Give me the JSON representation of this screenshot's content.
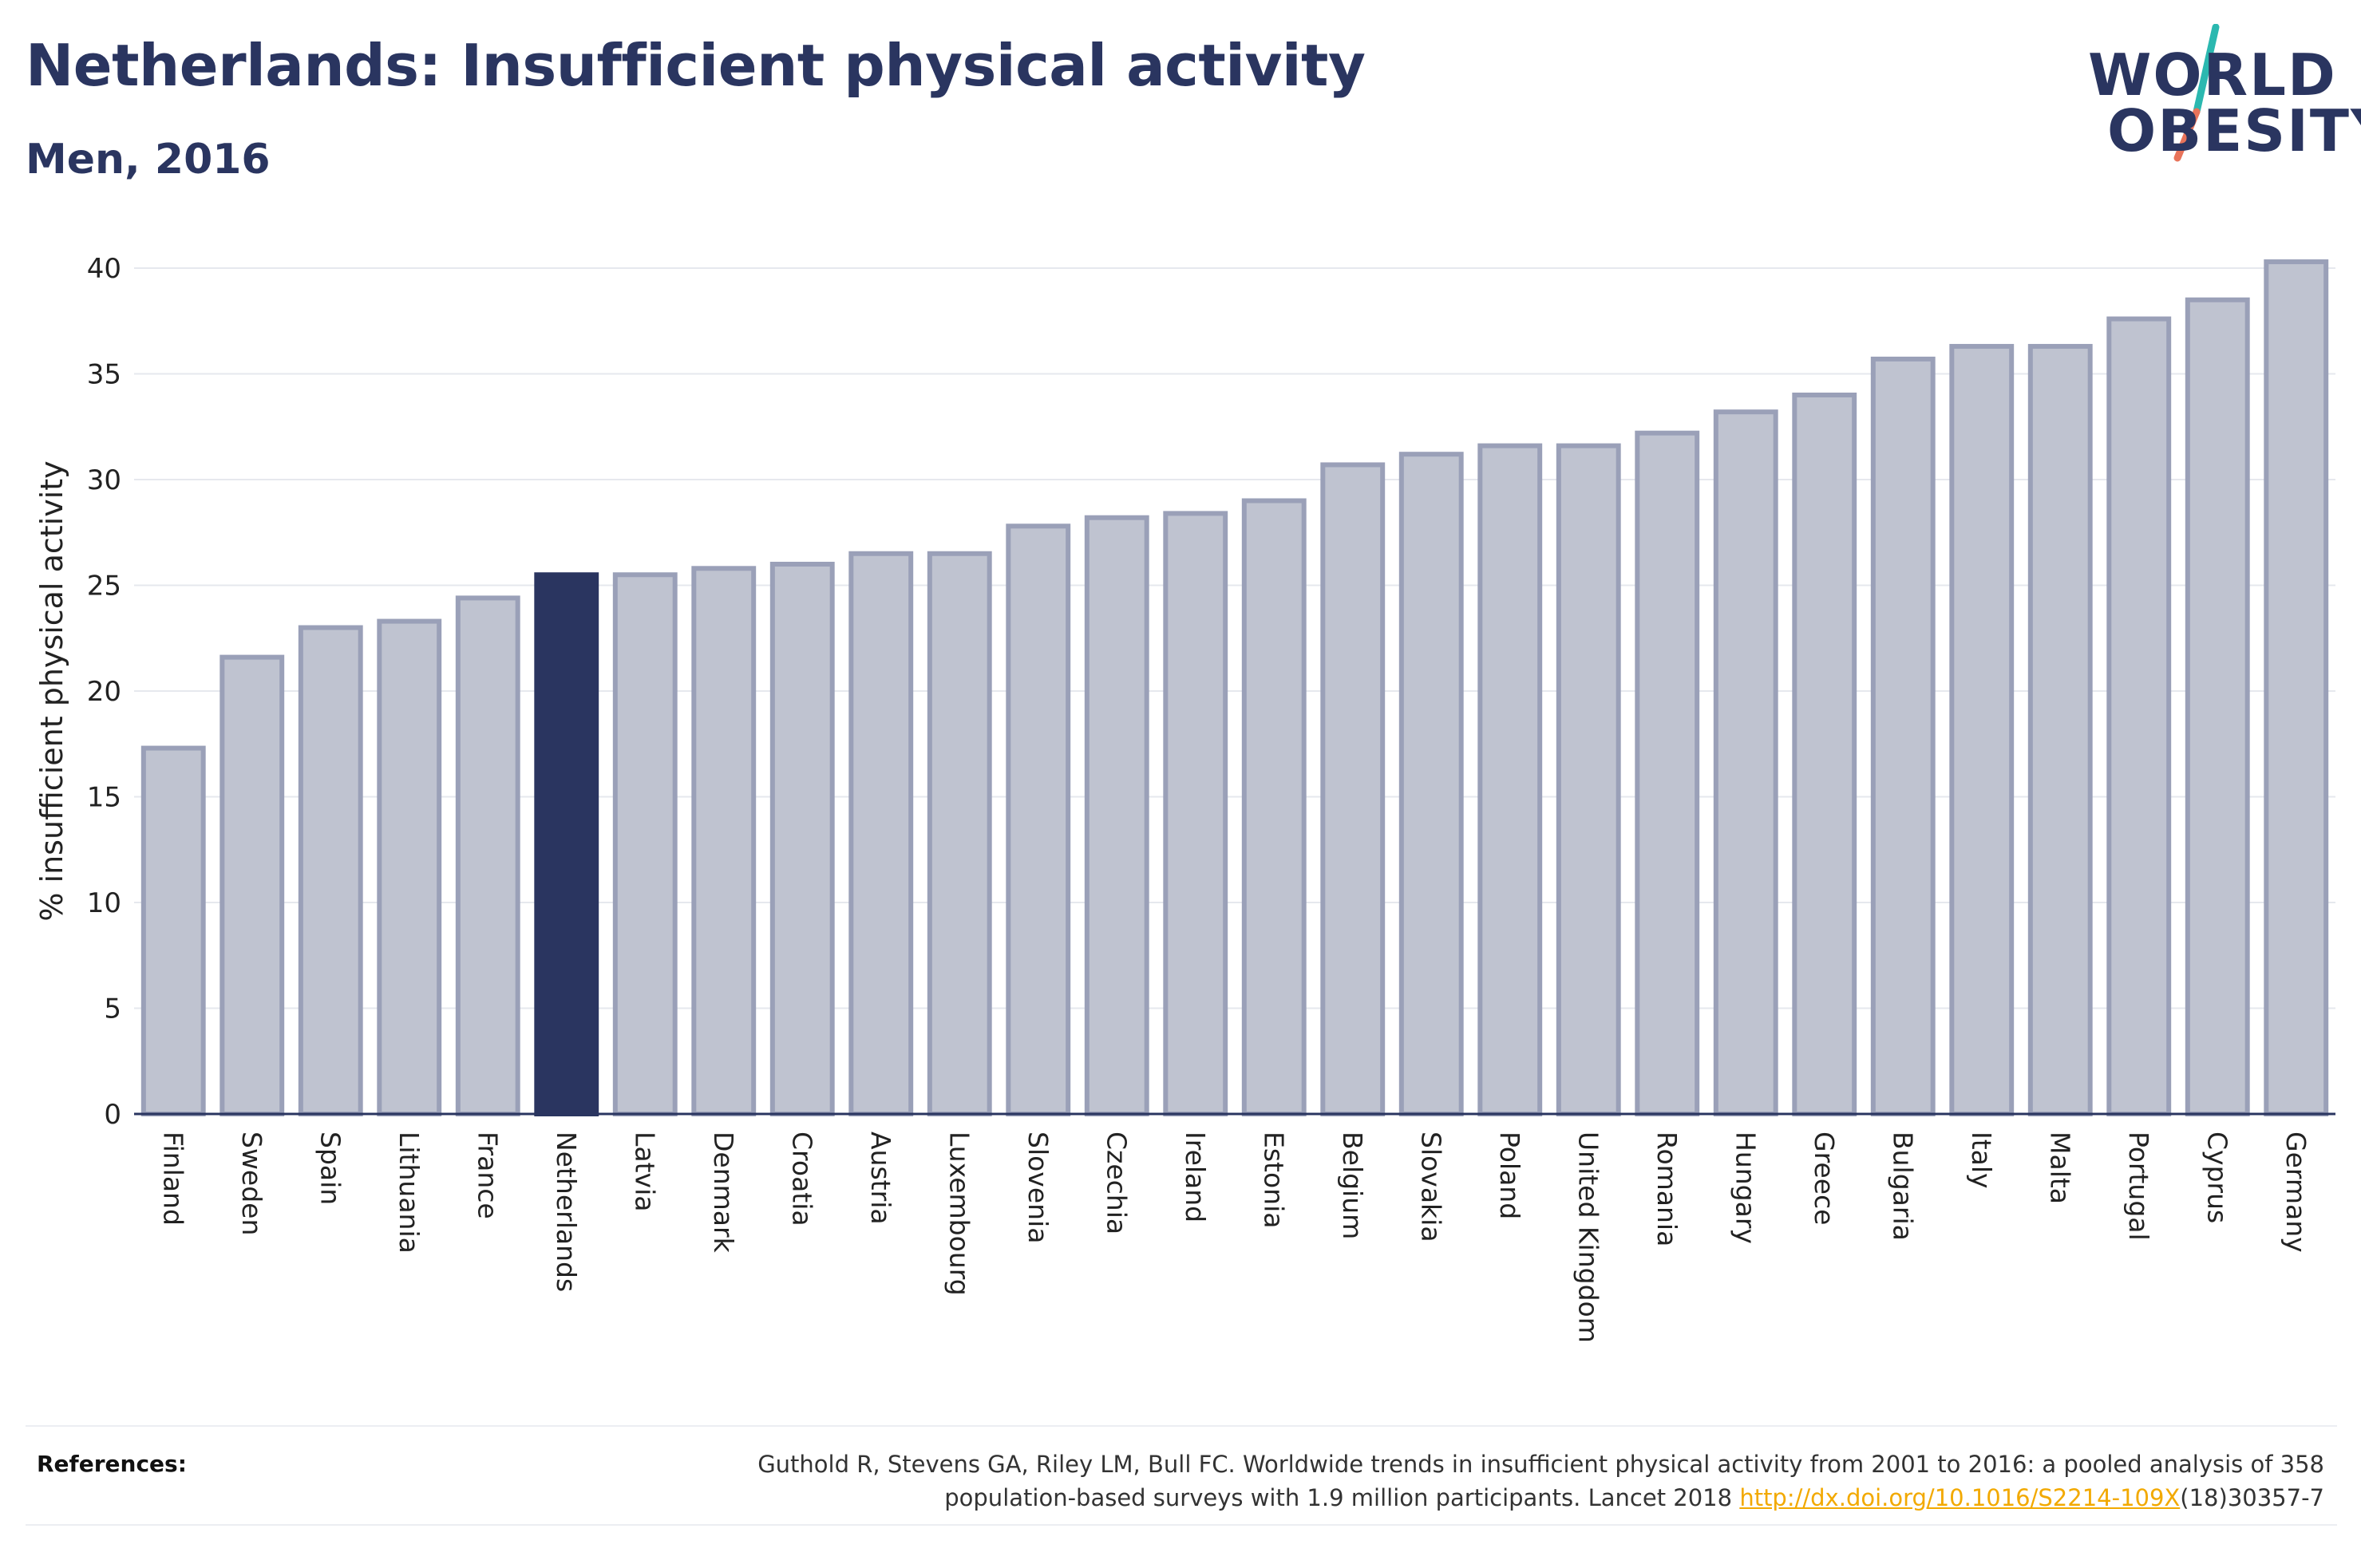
{
  "header": {
    "title": "Netherlands: Insufficient physical activity",
    "subtitle": "Men, 2016"
  },
  "logo": {
    "line1": "WORLD",
    "line2": "OBESITY",
    "accent_colors": [
      "#2bb8b0",
      "#e8735a"
    ]
  },
  "colors": {
    "bar": "#bfc3d0",
    "bar_border": "#9aa0b8",
    "highlight": "#2a3560",
    "grid": "#e6e8ee",
    "axis": "#2a3560",
    "link": "#f2a900"
  },
  "chart_data": {
    "type": "bar",
    "title": "Netherlands: Insufficient physical activity",
    "subtitle": "Men, 2016",
    "xlabel": "",
    "ylabel": "% insufficient physical activity",
    "ylim": [
      0,
      40
    ],
    "yticks": [
      0,
      5,
      10,
      15,
      20,
      25,
      30,
      35,
      40
    ],
    "grid": true,
    "highlight_category": "Netherlands",
    "categories": [
      "Finland",
      "Sweden",
      "Spain",
      "Lithuania",
      "France",
      "Netherlands",
      "Latvia",
      "Denmark",
      "Croatia",
      "Austria",
      "Luxembourg",
      "Slovenia",
      "Czechia",
      "Ireland",
      "Estonia",
      "Belgium",
      "Slovakia",
      "Poland",
      "United Kingdom",
      "Romania",
      "Hungary",
      "Greece",
      "Bulgaria",
      "Italy",
      "Malta",
      "Portugal",
      "Cyprus",
      "Germany"
    ],
    "values": [
      17.3,
      21.6,
      23.0,
      23.3,
      24.4,
      25.5,
      25.5,
      25.8,
      26.0,
      26.5,
      26.5,
      27.8,
      28.2,
      28.4,
      29.0,
      30.7,
      31.2,
      31.6,
      31.6,
      32.2,
      33.2,
      34.0,
      35.7,
      36.3,
      36.3,
      37.6,
      38.5,
      40.3
    ]
  },
  "references": {
    "label": "References:",
    "text_line1": "Guthold R, Stevens GA, Riley LM, Bull FC. Worldwide trends in insufficient physical activity from 2001 to 2016: a pooled analysis of 358",
    "text_line2_prefix": "population-based surveys with 1.9 million participants. Lancet 2018 ",
    "link_text": "http://dx.doi.org/10.1016/S2214-109X",
    "text_line2_suffix": "(18)30357-7"
  }
}
